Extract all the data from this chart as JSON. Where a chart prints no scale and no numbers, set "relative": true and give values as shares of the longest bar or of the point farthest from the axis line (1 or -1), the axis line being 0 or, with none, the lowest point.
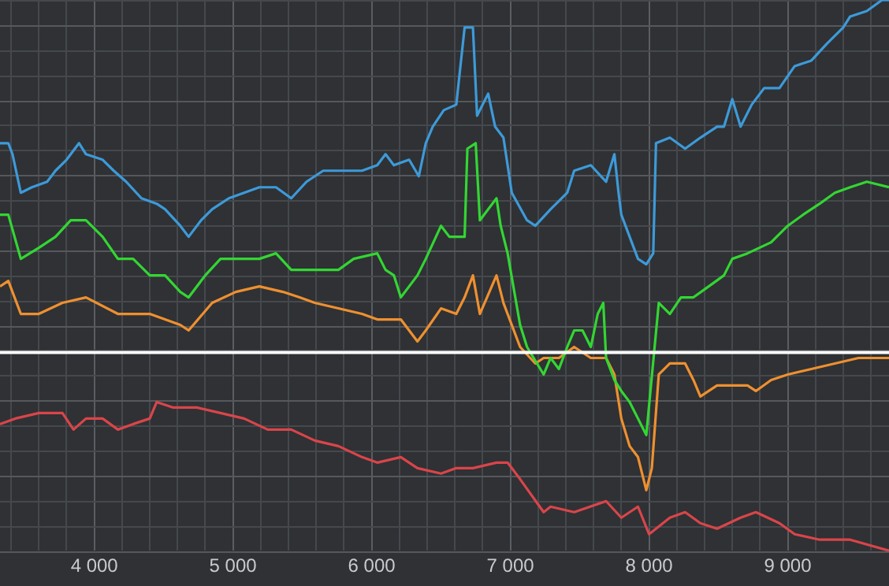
{
  "chart_data": {
    "type": "line",
    "relative": true,
    "grid": true,
    "legend": false,
    "marker": "none",
    "line_style": "solid",
    "xlim": [
      3320,
      9730
    ],
    "xticks": [
      {
        "value": 3400,
        "label": null
      },
      {
        "value": 3600,
        "label": null
      },
      {
        "value": 3800,
        "label": null
      },
      {
        "value": 4000,
        "label": "4 000"
      },
      {
        "value": 4200,
        "label": null
      },
      {
        "value": 4400,
        "label": null
      },
      {
        "value": 4600,
        "label": null
      },
      {
        "value": 4800,
        "label": null
      },
      {
        "value": 5000,
        "label": "5 000"
      },
      {
        "value": 5200,
        "label": null
      },
      {
        "value": 5400,
        "label": null
      },
      {
        "value": 5600,
        "label": null
      },
      {
        "value": 5800,
        "label": null
      },
      {
        "value": 6000,
        "label": "6 000"
      },
      {
        "value": 6200,
        "label": null
      },
      {
        "value": 6400,
        "label": null
      },
      {
        "value": 6600,
        "label": null
      },
      {
        "value": 6800,
        "label": null
      },
      {
        "value": 7000,
        "label": "7 000"
      },
      {
        "value": 7200,
        "label": null
      },
      {
        "value": 7400,
        "label": null
      },
      {
        "value": 7600,
        "label": null
      },
      {
        "value": 7800,
        "label": null
      },
      {
        "value": 8000,
        "label": "8 000"
      },
      {
        "value": 8200,
        "label": null
      },
      {
        "value": 8400,
        "label": null
      },
      {
        "value": 8600,
        "label": null
      },
      {
        "value": 8800,
        "label": null
      },
      {
        "value": 9000,
        "label": "9 000"
      },
      {
        "value": 9200,
        "label": null
      },
      {
        "value": 9400,
        "label": null
      },
      {
        "value": 9600,
        "label": null
      }
    ],
    "ref_lines": [
      {
        "axis": "y",
        "value": 0.36,
        "color": "#ffffff"
      }
    ],
    "series": [
      {
        "color": "#3d9ad9",
        "x": [
          3320,
          3380,
          3410,
          3470,
          3550,
          3660,
          3720,
          3800,
          3890,
          3940,
          4060,
          4140,
          4230,
          4340,
          4450,
          4510,
          4620,
          4680,
          4770,
          4850,
          4970,
          5080,
          5190,
          5310,
          5420,
          5530,
          5650,
          5760,
          5930,
          6040,
          6100,
          6160,
          6270,
          6340,
          6390,
          6440,
          6520,
          6610,
          6670,
          6730,
          6760,
          6840,
          6890,
          6950,
          7010,
          7120,
          7180,
          7290,
          7410,
          7460,
          7580,
          7690,
          7750,
          7780,
          7800,
          7860,
          7920,
          7980,
          8030,
          8050,
          8150,
          8260,
          8370,
          8490,
          8540,
          8600,
          8660,
          8740,
          8830,
          8940,
          9050,
          9170,
          9280,
          9400,
          9450,
          9570,
          9680,
          9730
        ],
        "values": [
          0.74,
          0.74,
          0.72,
          0.65,
          0.66,
          0.67,
          0.69,
          0.71,
          0.74,
          0.72,
          0.71,
          0.69,
          0.67,
          0.64,
          0.63,
          0.62,
          0.59,
          0.57,
          0.6,
          0.62,
          0.64,
          0.65,
          0.66,
          0.66,
          0.64,
          0.67,
          0.69,
          0.69,
          0.69,
          0.7,
          0.72,
          0.7,
          0.71,
          0.68,
          0.74,
          0.77,
          0.8,
          0.81,
          0.95,
          0.95,
          0.79,
          0.83,
          0.77,
          0.75,
          0.65,
          0.6,
          0.59,
          0.62,
          0.65,
          0.69,
          0.7,
          0.67,
          0.72,
          0.65,
          0.61,
          0.57,
          0.53,
          0.52,
          0.54,
          0.74,
          0.75,
          0.73,
          0.75,
          0.77,
          0.77,
          0.82,
          0.77,
          0.81,
          0.84,
          0.84,
          0.88,
          0.89,
          0.92,
          0.95,
          0.97,
          0.98,
          1.0,
          1.0
        ]
      },
      {
        "color": "#33d633",
        "x": [
          3320,
          3380,
          3470,
          3600,
          3720,
          3830,
          3940,
          4060,
          4170,
          4280,
          4400,
          4510,
          4620,
          4680,
          4800,
          4910,
          5020,
          5190,
          5310,
          5420,
          5530,
          5650,
          5760,
          5870,
          6040,
          6100,
          6160,
          6210,
          6330,
          6390,
          6500,
          6560,
          6670,
          6690,
          6750,
          6780,
          6900,
          6930,
          6980,
          7070,
          7120,
          7240,
          7290,
          7350,
          7410,
          7460,
          7520,
          7580,
          7630,
          7670,
          7690,
          7750,
          7800,
          7860,
          7920,
          7980,
          8010,
          8070,
          8150,
          8230,
          8320,
          8430,
          8540,
          8600,
          8710,
          8880,
          9000,
          9110,
          9230,
          9340,
          9450,
          9570,
          9730
        ],
        "values": [
          0.61,
          0.61,
          0.53,
          0.55,
          0.57,
          0.6,
          0.6,
          0.57,
          0.53,
          0.53,
          0.5,
          0.5,
          0.47,
          0.46,
          0.5,
          0.53,
          0.53,
          0.53,
          0.54,
          0.51,
          0.51,
          0.51,
          0.51,
          0.53,
          0.54,
          0.51,
          0.5,
          0.46,
          0.5,
          0.53,
          0.59,
          0.57,
          0.57,
          0.73,
          0.74,
          0.6,
          0.64,
          0.59,
          0.54,
          0.41,
          0.37,
          0.32,
          0.35,
          0.33,
          0.37,
          0.4,
          0.4,
          0.37,
          0.43,
          0.45,
          0.35,
          0.31,
          0.29,
          0.27,
          0.24,
          0.21,
          0.29,
          0.45,
          0.43,
          0.46,
          0.46,
          0.48,
          0.5,
          0.53,
          0.54,
          0.56,
          0.59,
          0.61,
          0.63,
          0.65,
          0.66,
          0.67,
          0.66
        ]
      },
      {
        "color": "#ee9030",
        "x": [
          3320,
          3380,
          3470,
          3600,
          3770,
          3940,
          4170,
          4400,
          4620,
          4680,
          4850,
          5020,
          5190,
          5360,
          5480,
          5590,
          5760,
          5930,
          6040,
          6210,
          6330,
          6390,
          6500,
          6610,
          6670,
          6730,
          6780,
          6900,
          6950,
          7070,
          7180,
          7240,
          7350,
          7460,
          7580,
          7690,
          7750,
          7800,
          7860,
          7920,
          7980,
          8020,
          8070,
          8150,
          8260,
          8320,
          8370,
          8490,
          8600,
          8710,
          8770,
          8880,
          9000,
          9170,
          9340,
          9510,
          9730
        ],
        "values": [
          0.48,
          0.49,
          0.43,
          0.43,
          0.45,
          0.46,
          0.43,
          0.43,
          0.41,
          0.4,
          0.45,
          0.47,
          0.48,
          0.47,
          0.46,
          0.45,
          0.44,
          0.43,
          0.42,
          0.42,
          0.38,
          0.4,
          0.44,
          0.43,
          0.46,
          0.5,
          0.43,
          0.5,
          0.45,
          0.37,
          0.34,
          0.35,
          0.35,
          0.37,
          0.35,
          0.35,
          0.32,
          0.24,
          0.19,
          0.17,
          0.11,
          0.15,
          0.32,
          0.34,
          0.34,
          0.31,
          0.28,
          0.3,
          0.3,
          0.3,
          0.29,
          0.31,
          0.32,
          0.33,
          0.34,
          0.35,
          0.35
        ]
      },
      {
        "color": "#d9454a",
        "x": [
          3320,
          3430,
          3600,
          3770,
          3850,
          3940,
          4060,
          4170,
          4280,
          4400,
          4450,
          4570,
          4740,
          4910,
          5080,
          5250,
          5420,
          5590,
          5760,
          5930,
          6040,
          6210,
          6330,
          6500,
          6610,
          6730,
          6900,
          6980,
          7070,
          7240,
          7290,
          7460,
          7690,
          7800,
          7920,
          8000,
          8150,
          8260,
          8370,
          8490,
          8660,
          8770,
          8940,
          9050,
          9230,
          9450,
          9730
        ],
        "values": [
          0.23,
          0.24,
          0.25,
          0.25,
          0.22,
          0.24,
          0.24,
          0.22,
          0.23,
          0.24,
          0.27,
          0.26,
          0.26,
          0.25,
          0.24,
          0.22,
          0.22,
          0.2,
          0.19,
          0.17,
          0.16,
          0.17,
          0.15,
          0.14,
          0.15,
          0.15,
          0.16,
          0.16,
          0.13,
          0.07,
          0.08,
          0.07,
          0.09,
          0.06,
          0.08,
          0.03,
          0.06,
          0.07,
          0.05,
          0.04,
          0.06,
          0.07,
          0.05,
          0.03,
          0.02,
          0.02,
          0
        ]
      }
    ]
  }
}
